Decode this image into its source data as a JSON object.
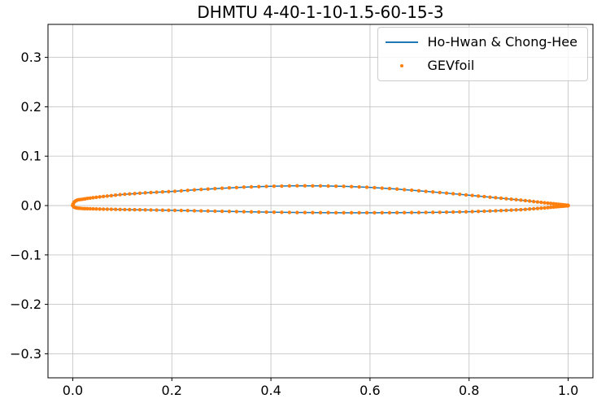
{
  "title": "DHMTU 4-40-1-10-1.5-60-15-3",
  "legend": {
    "position": "upper right",
    "items": [
      {
        "label": "Ho-Hwan & Chong-Hee",
        "marker": "line",
        "color": "#1f77b4"
      },
      {
        "label": "GEVfoil",
        "marker": "dot",
        "color": "#ff7f0e"
      }
    ]
  },
  "chart_data": {
    "type": "line",
    "title": "DHMTU 4-40-1-10-1.5-60-15-3",
    "xlabel": "",
    "ylabel": "",
    "xlim": [
      -0.05,
      1.05
    ],
    "ylim": [
      -0.3487,
      0.3668
    ],
    "xticks": [
      0.0,
      0.2,
      0.4,
      0.6,
      0.8,
      1.0
    ],
    "xtick_labels": [
      "0.0",
      "0.2",
      "0.4",
      "0.6",
      "0.8",
      "1.0"
    ],
    "yticks": [
      0.3,
      0.2,
      0.1,
      0.0,
      -0.1,
      -0.2,
      -0.3
    ],
    "ytick_labels": [
      "0.3",
      "0.2",
      "0.1",
      "0.0",
      "−0.1",
      "−0.2",
      "−0.3"
    ],
    "grid": true,
    "grid_color": "#c6c6c6",
    "axis_color": "#000000",
    "legend_position": "upper right",
    "series": [
      {
        "name": "Ho-Hwan & Chong-Hee",
        "type": "line",
        "color": "#1f77b4",
        "line_width": 1.5,
        "upper_surface": [
          [
            0.0,
            0.001
          ],
          [
            0.002,
            0.006
          ],
          [
            0.005,
            0.009
          ],
          [
            0.01,
            0.0115
          ],
          [
            0.02,
            0.0128
          ],
          [
            0.03,
            0.0145
          ],
          [
            0.05,
            0.017
          ],
          [
            0.075,
            0.0198
          ],
          [
            0.1,
            0.0225
          ],
          [
            0.15,
            0.026
          ],
          [
            0.2,
            0.0285
          ],
          [
            0.25,
            0.032
          ],
          [
            0.3,
            0.035
          ],
          [
            0.35,
            0.0375
          ],
          [
            0.4,
            0.039
          ],
          [
            0.45,
            0.04
          ],
          [
            0.5,
            0.0398
          ],
          [
            0.55,
            0.0388
          ],
          [
            0.6,
            0.0368
          ],
          [
            0.65,
            0.0338
          ],
          [
            0.7,
            0.0298
          ],
          [
            0.75,
            0.0256
          ],
          [
            0.8,
            0.021
          ],
          [
            0.85,
            0.0163
          ],
          [
            0.9,
            0.0115
          ],
          [
            0.95,
            0.006
          ],
          [
            0.98,
            0.0026
          ],
          [
            1.0,
            0.0002
          ]
        ],
        "lower_surface": [
          [
            0.0,
            0.0
          ],
          [
            0.002,
            -0.0028
          ],
          [
            0.005,
            -0.0042
          ],
          [
            0.01,
            -0.0052
          ],
          [
            0.02,
            -0.006
          ],
          [
            0.03,
            -0.0064
          ],
          [
            0.05,
            -0.007
          ],
          [
            0.075,
            -0.0075
          ],
          [
            0.1,
            -0.008
          ],
          [
            0.15,
            -0.0088
          ],
          [
            0.2,
            -0.0096
          ],
          [
            0.25,
            -0.0106
          ],
          [
            0.3,
            -0.0116
          ],
          [
            0.35,
            -0.0126
          ],
          [
            0.4,
            -0.0134
          ],
          [
            0.45,
            -0.014
          ],
          [
            0.5,
            -0.0143
          ],
          [
            0.55,
            -0.0145
          ],
          [
            0.6,
            -0.0145
          ],
          [
            0.65,
            -0.0144
          ],
          [
            0.7,
            -0.0141
          ],
          [
            0.75,
            -0.0135
          ],
          [
            0.8,
            -0.0125
          ],
          [
            0.85,
            -0.0108
          ],
          [
            0.9,
            -0.0086
          ],
          [
            0.95,
            -0.005
          ],
          [
            0.98,
            -0.0022
          ],
          [
            1.0,
            -0.0002
          ]
        ]
      },
      {
        "name": "GEVfoil",
        "type": "scatter",
        "color": "#ff7f0e",
        "marker": "dot",
        "marker_diameter_px": 4.4,
        "points_per_surface": 100,
        "distribution": "cosine",
        "coincides_with_series": "Ho-Hwan & Chong-Hee"
      }
    ]
  }
}
